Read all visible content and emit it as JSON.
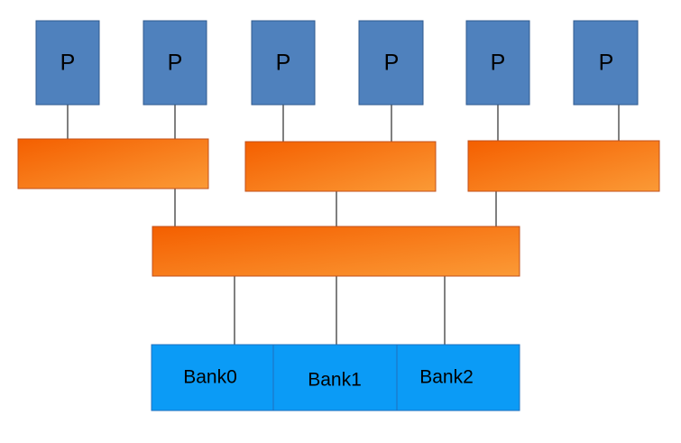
{
  "processors": [
    {
      "label": "P"
    },
    {
      "label": "P"
    },
    {
      "label": "P"
    },
    {
      "label": "P"
    },
    {
      "label": "P"
    },
    {
      "label": "P"
    }
  ],
  "banks": [
    {
      "label": "Bank0"
    },
    {
      "label": "Bank1"
    },
    {
      "label": "Bank2"
    }
  ],
  "colors": {
    "processor_fill": "#4f81bd",
    "processor_stroke": "#2f5a8f",
    "switch_light": "#fb9a36",
    "switch_dark": "#f45f00",
    "switch_stroke": "#c0501c",
    "bank_fill": "#0b9bf6",
    "bank_stroke": "#1f6fbf",
    "wire": "#000000"
  }
}
